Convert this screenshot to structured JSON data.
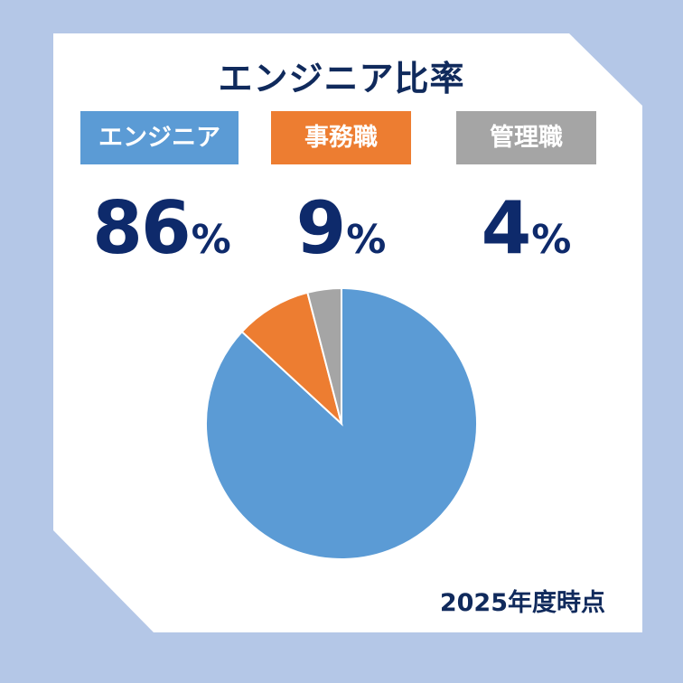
{
  "title": "エンジニア比率",
  "note": "2025年度時点",
  "categories": [
    {
      "label": "エンジニア",
      "value": "86",
      "unit": "%",
      "color": "#5b9bd5"
    },
    {
      "label": "事務職",
      "value": "9",
      "unit": "%",
      "color": "#ed7d31"
    },
    {
      "label": "管理職",
      "value": "4",
      "unit": "%",
      "color": "#a5a5a5"
    }
  ],
  "chart_data": {
    "type": "pie",
    "categories": [
      "エンジニア",
      "事務職",
      "管理職"
    ],
    "values": [
      86,
      9,
      4
    ],
    "colors": [
      "#5b9bd5",
      "#ed7d31",
      "#a5a5a5"
    ],
    "title": "エンジニア比率"
  }
}
